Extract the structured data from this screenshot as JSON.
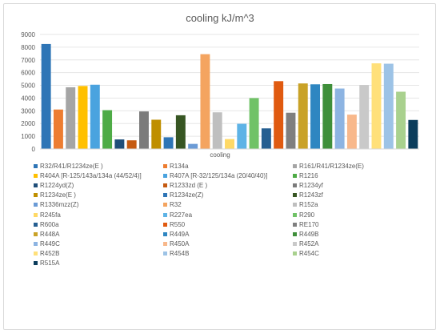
{
  "chart_data": {
    "type": "bar",
    "title": "cooling  kJ/m^3",
    "xlabel": "cooling",
    "ylabel": "",
    "ylim": [
      0,
      9000
    ],
    "yticks": [
      0,
      1000,
      2000,
      3000,
      4000,
      5000,
      6000,
      7000,
      8000,
      9000
    ],
    "grid": true,
    "legend_position": "bottom",
    "series": [
      {
        "name": "R32/R41/R1234ze(E )",
        "values": [
          8250
        ],
        "color": "#2e75b6"
      },
      {
        "name": "R134a",
        "values": [
          3100
        ],
        "color": "#ed7d31"
      },
      {
        "name": "R161/R41/R1234ze(E)",
        "values": [
          4850
        ],
        "color": "#a5a5a5"
      },
      {
        "name": "R404A [R-125/143a/134a (44/52/4)]",
        "values": [
          4950
        ],
        "color": "#ffc000"
      },
      {
        "name": "R407A [R-32/125/134a (20/40/40)]",
        "values": [
          5050
        ],
        "color": "#4aa3df"
      },
      {
        "name": "R1216",
        "values": [
          3050
        ],
        "color": "#4eab46"
      },
      {
        "name": "R1224yd(Z)",
        "values": [
          750
        ],
        "color": "#1f4e79"
      },
      {
        "name": "R1233zd (E )",
        "values": [
          680
        ],
        "color": "#c55a11"
      },
      {
        "name": "R1234yf",
        "values": [
          2950
        ],
        "color": "#7b7b7b"
      },
      {
        "name": "R1234ze(E )",
        "values": [
          2300
        ],
        "color": "#bf8f00"
      },
      {
        "name": "R1234ze(Z)",
        "values": [
          920
        ],
        "color": "#2e75b6"
      },
      {
        "name": "R1243zf",
        "values": [
          2650
        ],
        "color": "#375623"
      },
      {
        "name": "R1336mzz(Z)",
        "values": [
          400
        ],
        "color": "#6b9bd6"
      },
      {
        "name": "R32",
        "values": [
          7450
        ],
        "color": "#f4a460"
      },
      {
        "name": "R152a",
        "values": [
          2880
        ],
        "color": "#bfbfbf"
      },
      {
        "name": "R245fa",
        "values": [
          780
        ],
        "color": "#ffd966"
      },
      {
        "name": "R227ea",
        "values": [
          1980
        ],
        "color": "#5eb3e6"
      },
      {
        "name": "R290",
        "values": [
          4000
        ],
        "color": "#70c267"
      },
      {
        "name": "R600a",
        "values": [
          1620
        ],
        "color": "#255e91"
      },
      {
        "name": "R550",
        "values": [
          5330
        ],
        "color": "#e05a10"
      },
      {
        "name": "RE170",
        "values": [
          2850
        ],
        "color": "#7f7f7f"
      },
      {
        "name": "R448A",
        "values": [
          5150
        ],
        "color": "#c9a227"
      },
      {
        "name": "R449A",
        "values": [
          5080
        ],
        "color": "#2e86c1"
      },
      {
        "name": "R449B",
        "values": [
          5100
        ],
        "color": "#3f8f3a"
      },
      {
        "name": "R449C",
        "values": [
          4750
        ],
        "color": "#8db4e2"
      },
      {
        "name": "R450A",
        "values": [
          2700
        ],
        "color": "#f8b88b"
      },
      {
        "name": "R452A",
        "values": [
          5030
        ],
        "color": "#c9c9c9"
      },
      {
        "name": "R452B",
        "values": [
          6730
        ],
        "color": "#ffe07a"
      },
      {
        "name": "R454B",
        "values": [
          6700
        ],
        "color": "#9dc3e6"
      },
      {
        "name": "R454C",
        "values": [
          4500
        ],
        "color": "#a9d18e"
      },
      {
        "name": "R515A",
        "values": [
          2280
        ],
        "color": "#0b3d5c"
      }
    ]
  }
}
